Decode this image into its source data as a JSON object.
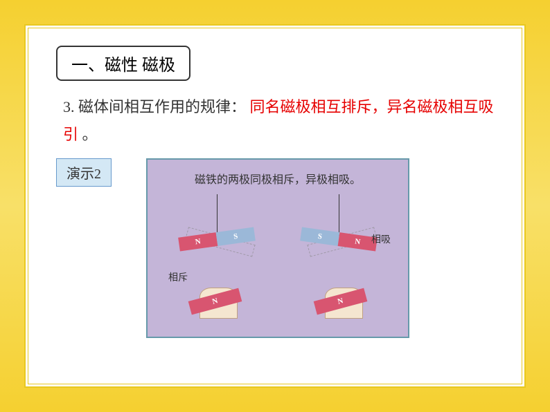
{
  "slide": {
    "section_title": "一、磁性  磁极",
    "point_number": "3.",
    "point_label": "磁体间相互作用的规律：",
    "rule_text": "同名磁极相互排斥，异名磁极相互吸引",
    "period": "。",
    "demo_label": "演示2",
    "illustration": {
      "caption": "磁铁的两极同极相斥，异极相吸。",
      "repel_label": "相斥",
      "attract_label": "相吸",
      "pole_n": "N",
      "pole_s": "S",
      "background_color": "#c4b5d8",
      "magnet_n_color": "#d85570",
      "magnet_s_color": "#9bb8d8"
    }
  },
  "colors": {
    "slide_bg": "#f5d030",
    "content_bg": "#ffffff",
    "text_black": "#333333",
    "text_red": "#e60000",
    "demo_box_bg": "#d4e8f5",
    "demo_box_border": "#6699cc"
  }
}
